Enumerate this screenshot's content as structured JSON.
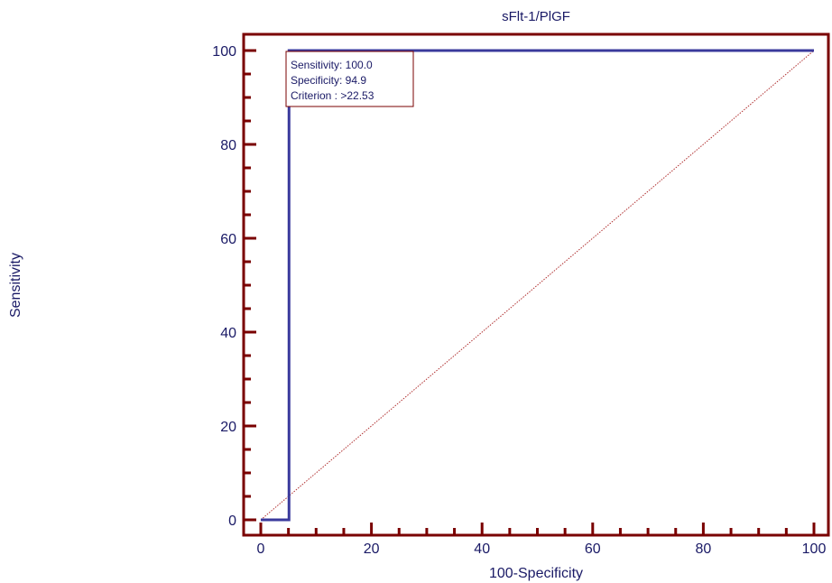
{
  "chart_data": {
    "type": "line",
    "title": "sFlt-1/PlGF",
    "xlabel": "100-Specificity",
    "ylabel": "Sensitivity",
    "xlim": [
      0,
      100
    ],
    "ylim": [
      0,
      100
    ],
    "x_ticks": [
      "0",
      "20",
      "40",
      "60",
      "80",
      "100"
    ],
    "y_ticks": [
      "0",
      "20",
      "40",
      "60",
      "80",
      "100"
    ],
    "grid": false,
    "series": [
      {
        "name": "",
        "x": [
          0,
          5.1,
          5.1,
          100
        ],
        "y": [
          0,
          0,
          100,
          100
        ],
        "color": "#3a3a9c"
      },
      {
        "name": "",
        "x": [
          0,
          100
        ],
        "y": [
          0,
          100
        ],
        "color": "#b03030",
        "dashed": true
      }
    ],
    "annotation": {
      "lines": [
        "Sensitivity: 100.0",
        "Specificity: 94.9",
        "Criterion : >22.53"
      ]
    },
    "axis_color": "#7a0000",
    "text_color": "#1a1a66"
  }
}
